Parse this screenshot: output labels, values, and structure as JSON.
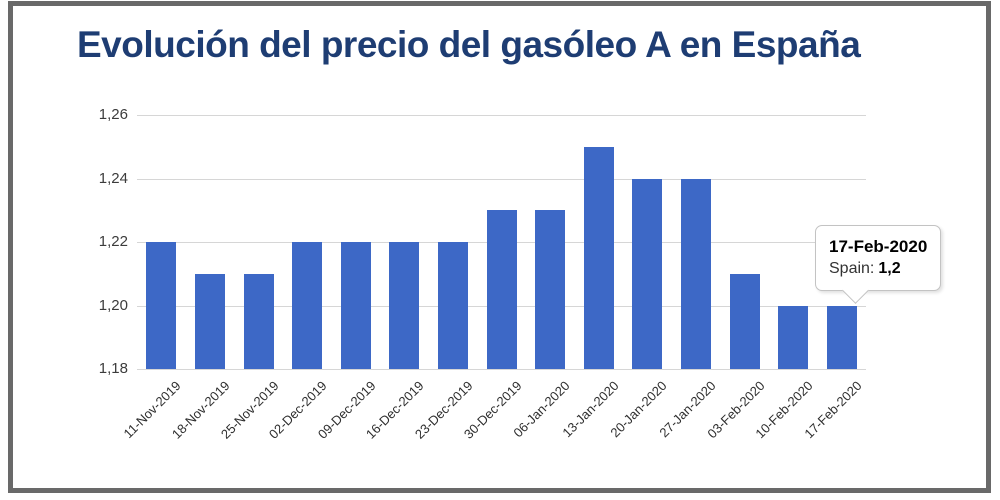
{
  "title": "Evolución del precio del gasóleo A en España",
  "chart_data": {
    "type": "bar",
    "title": "Evolución del precio del gasóleo A en España",
    "categories": [
      "11-Nov-2019",
      "18-Nov-2019",
      "25-Nov-2019",
      "02-Dec-2019",
      "09-Dec-2019",
      "16-Dec-2019",
      "23-Dec-2019",
      "30-Dec-2019",
      "06-Jan-2020",
      "13-Jan-2020",
      "20-Jan-2020",
      "27-Jan-2020",
      "03-Feb-2020",
      "10-Feb-2020",
      "17-Feb-2020"
    ],
    "series": [
      {
        "name": "Spain",
        "values": [
          1.22,
          1.21,
          1.21,
          1.22,
          1.22,
          1.22,
          1.22,
          1.23,
          1.23,
          1.25,
          1.24,
          1.24,
          1.21,
          1.2,
          1.2
        ]
      }
    ],
    "xlabel": "",
    "ylabel": "",
    "ylim": [
      1.18,
      1.26
    ],
    "y_ticks": [
      {
        "label": "1,18",
        "value": 1.18
      },
      {
        "label": "1,20",
        "value": 1.2
      },
      {
        "label": "1,22",
        "value": 1.22
      },
      {
        "label": "1,24",
        "value": 1.24
      },
      {
        "label": "1,26",
        "value": 1.26
      }
    ],
    "grid": true,
    "legend": "none",
    "decimal_separator": ","
  },
  "tooltip": {
    "date": "17-Feb-2020",
    "series_label": "Spain:",
    "value": "1,2"
  },
  "colors": {
    "bar": "#3d68c6",
    "title": "#1e3d73",
    "grid": "#d6d6d6",
    "axis_text": "#3c3c3c",
    "frame_border": "#696969",
    "tooltip_border": "#c3c3c3"
  }
}
